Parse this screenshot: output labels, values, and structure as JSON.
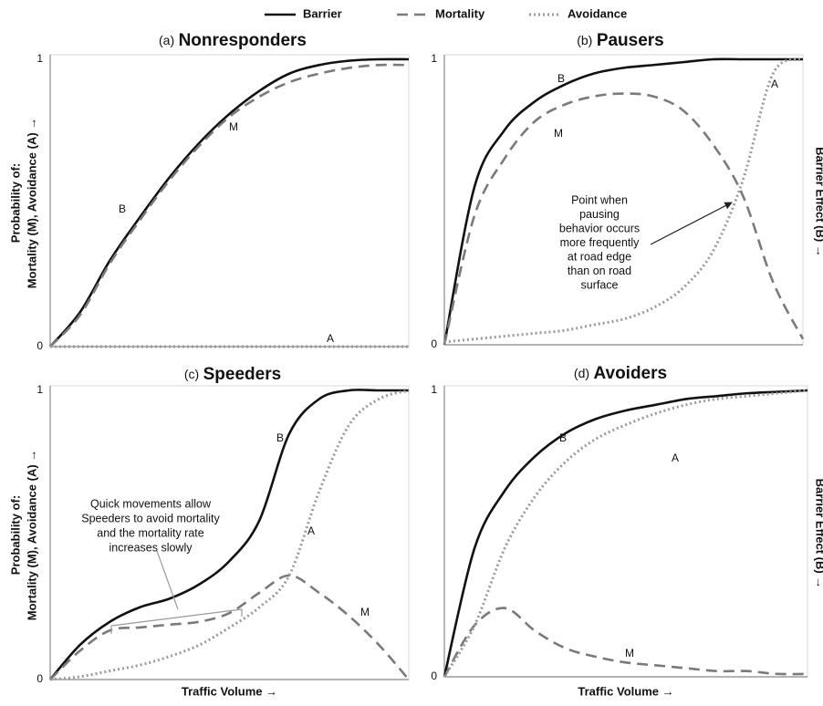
{
  "legend": [
    {
      "name": "Barrier",
      "color": "#111111",
      "dash": "solid"
    },
    {
      "name": "Mortality",
      "color": "#7a7a7a",
      "dash": "dashed"
    },
    {
      "name": "Avoidance",
      "color": "#9a9a9a",
      "dash": "dotted"
    }
  ],
  "chart_data": [
    {
      "type": "line",
      "panel": "(a)",
      "title": "Nonresponders",
      "y_label": [
        "Probability of:",
        "Mortality (M), Avoidance (A) →"
      ],
      "categories": [
        null,
        null,
        null,
        null,
        null,
        null,
        null,
        null,
        null,
        null,
        null,
        null,
        null
      ],
      "ylim": [
        0,
        1
      ],
      "yticks": [
        0,
        1
      ],
      "series": [
        {
          "color": "#111111",
          "dash": "solid",
          "values": [
            0,
            0.12,
            0.3,
            0.45,
            0.59,
            0.71,
            0.81,
            0.89,
            0.95,
            0.98,
            0.995,
            1,
            1
          ]
        },
        {
          "color": "#7a7a7a",
          "dash": "dashed",
          "values": [
            0,
            0.11,
            0.29,
            0.44,
            0.58,
            0.7,
            0.8,
            0.87,
            0.92,
            0.95,
            0.97,
            0.98,
            0.98
          ]
        },
        {
          "color": "#9a9a9a",
          "dash": "dotted",
          "values": [
            0,
            0,
            0,
            0,
            0,
            0,
            0,
            0,
            0,
            0,
            0,
            0,
            0
          ]
        }
      ],
      "annotations": [
        "B",
        "M",
        "A"
      ]
    },
    {
      "type": "line",
      "panel": "(b)",
      "title": "Pausers",
      "y2_label": "Barrier Effect (B) →",
      "categories": [
        null,
        null,
        null,
        null,
        null,
        null,
        null,
        null,
        null,
        null,
        null,
        null,
        null
      ],
      "ylim": [
        0,
        1
      ],
      "yticks": [
        0,
        1
      ],
      "series": [
        {
          "color": "#111111",
          "dash": "solid",
          "values": [
            0,
            0.55,
            0.75,
            0.85,
            0.91,
            0.95,
            0.97,
            0.98,
            0.99,
            1,
            1,
            1,
            1
          ]
        },
        {
          "color": "#7a7a7a",
          "dash": "dashed",
          "values": [
            0,
            0.45,
            0.65,
            0.78,
            0.84,
            0.87,
            0.88,
            0.87,
            0.82,
            0.7,
            0.52,
            0.22,
            0.02
          ]
        },
        {
          "color": "#9a9a9a",
          "dash": "dotted",
          "values": [
            0.01,
            0.02,
            0.03,
            0.04,
            0.05,
            0.07,
            0.09,
            0.13,
            0.2,
            0.33,
            0.58,
            0.95,
            1
          ]
        }
      ],
      "annotations": [
        "B",
        "M",
        "A"
      ],
      "note": [
        "Point when",
        "pausing",
        "behavior occurs",
        "more frequently",
        "at road edge",
        "than on road",
        "surface"
      ]
    },
    {
      "type": "line",
      "panel": "(c)",
      "title": "Speeders",
      "y_label": [
        "Probability of:",
        "Mortality (M), Avoidance (A) →"
      ],
      "x_label": "Traffic Volume →",
      "categories": [
        null,
        null,
        null,
        null,
        null,
        null,
        null,
        null,
        null,
        null,
        null,
        null,
        null
      ],
      "ylim": [
        0,
        1
      ],
      "yticks": [
        0,
        1
      ],
      "series": [
        {
          "color": "#111111",
          "dash": "solid",
          "values": [
            0,
            0.12,
            0.2,
            0.25,
            0.28,
            0.33,
            0.41,
            0.55,
            0.85,
            0.97,
            1,
            1,
            1
          ]
        },
        {
          "color": "#7a7a7a",
          "dash": "dashed",
          "values": [
            0,
            0.1,
            0.17,
            0.18,
            0.19,
            0.2,
            0.23,
            0.3,
            0.36,
            0.3,
            0.22,
            0.12,
            0
          ]
        },
        {
          "color": "#9a9a9a",
          "dash": "dotted",
          "values": [
            0,
            0.01,
            0.03,
            0.05,
            0.08,
            0.12,
            0.18,
            0.25,
            0.36,
            0.65,
            0.88,
            0.97,
            1
          ]
        }
      ],
      "annotations": [
        "B",
        "A",
        "M"
      ],
      "note": [
        "Quick movements allow",
        "Speeders to avoid mortality",
        "and the mortality rate",
        "increases slowly"
      ]
    },
    {
      "type": "line",
      "panel": "(d)",
      "title": "Avoiders",
      "y2_label": "Barrier Effect (B) →",
      "x_label": "Traffic Volume →",
      "categories": [
        null,
        null,
        null,
        null,
        null,
        null,
        null,
        null,
        null,
        null,
        null,
        null,
        null
      ],
      "ylim": [
        0,
        1
      ],
      "yticks": [
        0,
        1
      ],
      "series": [
        {
          "color": "#111111",
          "dash": "solid",
          "values": [
            0,
            0.45,
            0.65,
            0.77,
            0.85,
            0.9,
            0.93,
            0.95,
            0.97,
            0.98,
            0.99,
            0.995,
            1
          ]
        },
        {
          "color": "#7a7a7a",
          "dash": "dashed",
          "values": [
            0,
            0.18,
            0.24,
            0.16,
            0.1,
            0.07,
            0.05,
            0.04,
            0.03,
            0.02,
            0.02,
            0.01,
            0.01
          ]
        },
        {
          "color": "#9a9a9a",
          "dash": "dotted",
          "values": [
            0,
            0.18,
            0.45,
            0.63,
            0.75,
            0.83,
            0.88,
            0.92,
            0.95,
            0.97,
            0.98,
            0.99,
            1
          ]
        }
      ],
      "annotations": [
        "B",
        "A",
        "M"
      ]
    }
  ]
}
